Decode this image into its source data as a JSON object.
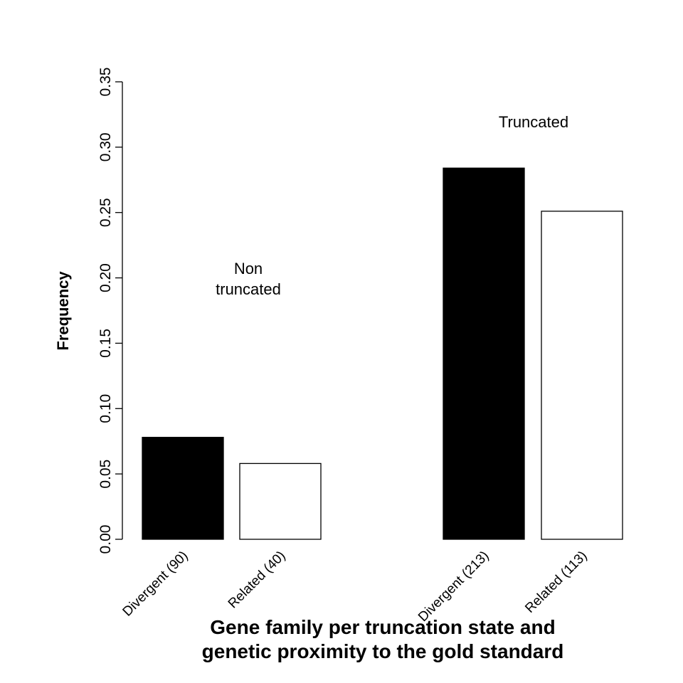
{
  "chart_data": {
    "type": "bar",
    "title": "",
    "xlabel": [
      "Gene family per truncation state and",
      "genetic proximity to the gold standard"
    ],
    "ylabel": "Frequency",
    "ylim": [
      0,
      0.35
    ],
    "yticks": [
      "0.00",
      "0.05",
      "0.10",
      "0.15",
      "0.20",
      "0.25",
      "0.30",
      "0.35"
    ],
    "grid": false,
    "legend": "none",
    "categories": [
      "Divergent (90)",
      "Related (40)",
      "Divergent (213)",
      "Related (113)"
    ],
    "values": [
      0.078,
      0.058,
      0.284,
      0.251
    ],
    "groups": [
      {
        "label": [
          "Non",
          "truncated"
        ],
        "members": [
          0,
          1
        ]
      },
      {
        "label": [
          "Truncated"
        ],
        "members": [
          2,
          3
        ]
      }
    ],
    "bar_colors": [
      "#000000",
      "#ffffff",
      "#000000",
      "#ffffff"
    ]
  }
}
